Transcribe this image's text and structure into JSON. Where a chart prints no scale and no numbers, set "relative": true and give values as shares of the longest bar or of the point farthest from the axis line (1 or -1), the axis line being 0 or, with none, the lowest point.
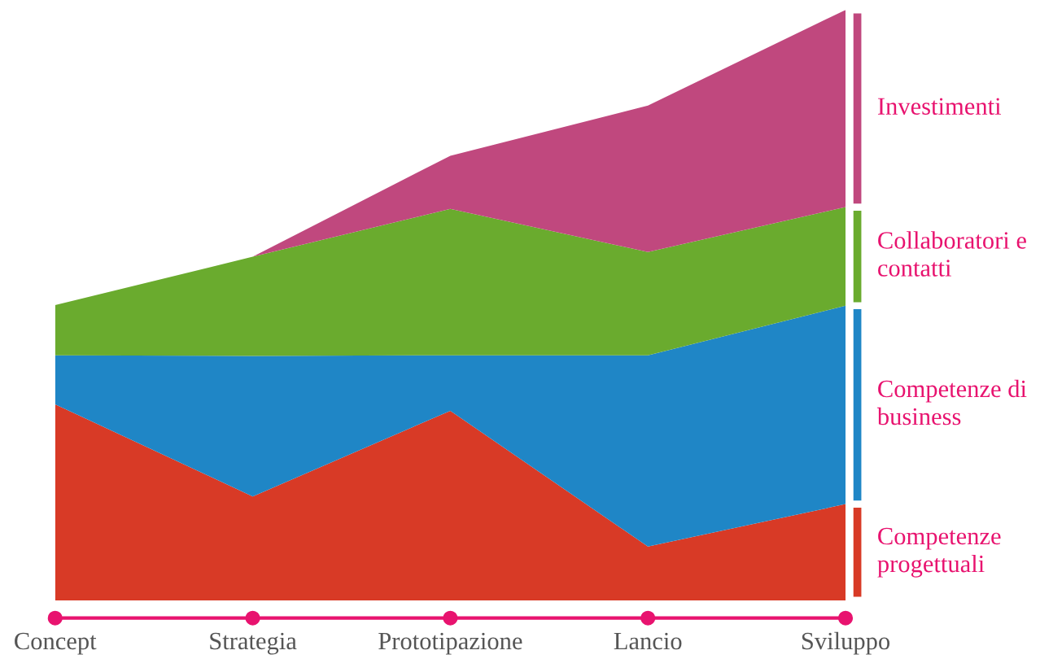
{
  "chart_data": {
    "type": "area",
    "stacked": true,
    "relative": true,
    "legend": "right",
    "categories": [
      "Concept",
      "Strategia",
      "Prototipazione",
      "Lancio",
      "Sviluppo"
    ],
    "series": [
      {
        "name": "Competenze progettuali",
        "color": "#d83a26",
        "values": [
          0.332,
          0.176,
          0.321,
          0.091,
          0.163
        ]
      },
      {
        "name": "Competenze di business",
        "color": "#1f86c6",
        "values": [
          0.083,
          0.238,
          0.094,
          0.324,
          0.336
        ]
      },
      {
        "name": "Collaboratori e contatti",
        "color": "#6aab2e",
        "values": [
          0.085,
          0.168,
          0.248,
          0.175,
          0.167
        ]
      },
      {
        "name": "Investimenti",
        "color": "#c0487e",
        "values": [
          0,
          0,
          0.09,
          0.248,
          0.334
        ]
      }
    ]
  }
}
